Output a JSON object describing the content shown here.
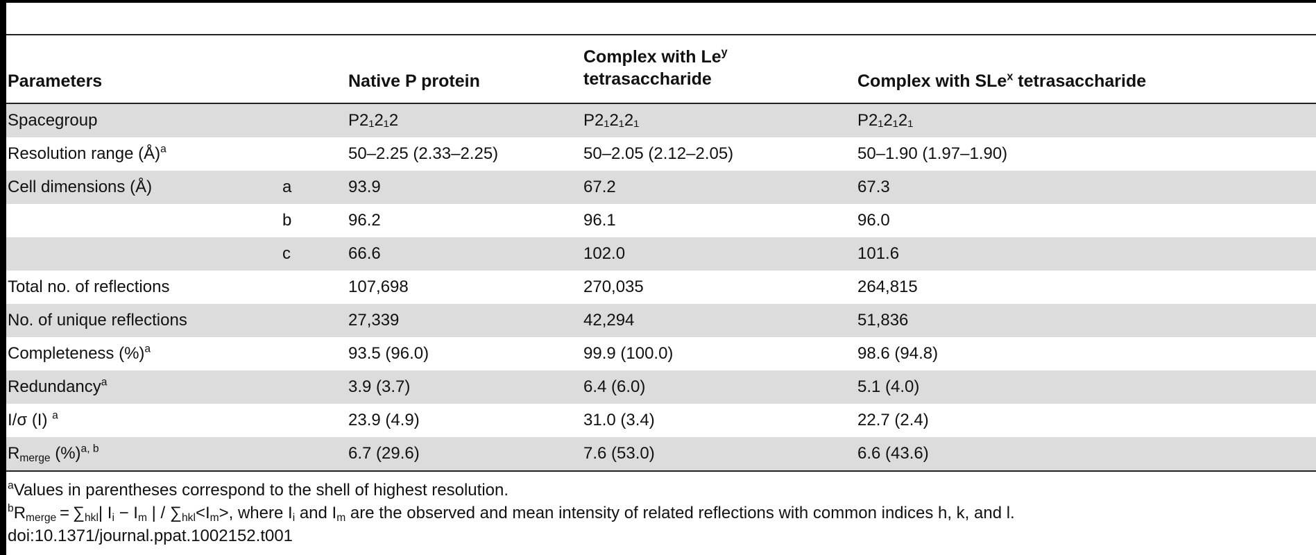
{
  "table": {
    "headers": {
      "parameters": "Parameters",
      "native": "Native P protein",
      "ley_line1": "Complex with Le",
      "ley_sup": "y",
      "ley_line2": "tetrasaccharide",
      "slex_pre": "Complex with SLe",
      "slex_sup": "x",
      "slex_post": " tetrasaccharide"
    },
    "rows": [
      {
        "param": "Spacegroup",
        "sub": "",
        "native": "P2₁2₁2",
        "ley": "P2₁2₁2₁",
        "slex": "P2₁2₁2₁",
        "shaded": true
      },
      {
        "param": "Resolution range (Å)",
        "param_sup": "a",
        "sub": "",
        "native": "50–2.25 (2.33–2.25)",
        "ley": "50–2.05 (2.12–2.05)",
        "slex": "50–1.90 (1.97–1.90)",
        "shaded": false
      },
      {
        "param": "Cell dimensions (Å)",
        "sub": "a",
        "native": "93.9",
        "ley": "67.2",
        "slex": "67.3",
        "shaded": true
      },
      {
        "param": "",
        "sub": "b",
        "native": "96.2",
        "ley": "96.1",
        "slex": "96.0",
        "shaded": false
      },
      {
        "param": "",
        "sub": "c",
        "native": "66.6",
        "ley": "102.0",
        "slex": "101.6",
        "shaded": true
      },
      {
        "param": "Total no. of reflections",
        "sub": "",
        "native": "107,698",
        "ley": "270,035",
        "slex": "264,815",
        "shaded": false
      },
      {
        "param": "No. of unique reflections",
        "sub": "",
        "native": "27,339",
        "ley": "42,294",
        "slex": "51,836",
        "shaded": true
      },
      {
        "param": "Completeness (%)",
        "param_sup": "a",
        "sub": "",
        "native": "93.5 (96.0)",
        "ley": "99.9 (100.0)",
        "slex": "98.6 (94.8)",
        "shaded": false
      },
      {
        "param": "Redundancy",
        "param_sup": "a",
        "sub": "",
        "native": "3.9 (3.7)",
        "ley": "6.4 (6.0)",
        "slex": "5.1 (4.0)",
        "shaded": true
      },
      {
        "param": "I/σ (I) ",
        "param_sup": "a",
        "sub": "",
        "native": "23.9 (4.9)",
        "ley": "31.0 (3.4)",
        "slex": "22.7 (2.4)",
        "shaded": false
      },
      {
        "param": "R",
        "param_sub": "merge",
        "param_mid": " (%)",
        "param_sup": "a, b",
        "sub": "",
        "native": "6.7 (29.6)",
        "ley": "7.6 (53.0)",
        "slex": "6.6 (43.6)",
        "shaded": true
      }
    ]
  },
  "footnotes": {
    "a_marker": "a",
    "a_text": "Values in parentheses correspond to the shell of highest resolution.",
    "b_marker": "b",
    "b_r": "R",
    "b_merge": "merge",
    "b_eq": " = ∑",
    "b_hkl1": "hkl",
    "b_mid1": "| I",
    "b_i1": "i",
    "b_mid2": " − I",
    "b_m1": "m",
    "b_mid3": " | / ∑",
    "b_hkl2": "hkl",
    "b_mid4": "<I",
    "b_m2": "m",
    "b_mid5": ">, where I",
    "b_i2": "i",
    "b_mid6": " and I",
    "b_m3": "m",
    "b_tail": " are the observed and mean intensity of related reflections with common indices h, k, and l.",
    "doi": "doi:10.1371/journal.ppat.1002152.t001"
  }
}
